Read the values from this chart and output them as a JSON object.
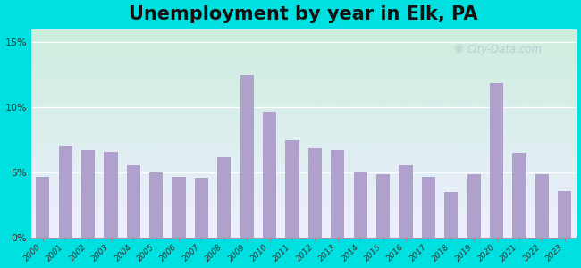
{
  "title": "Unemployment by year in Elk, PA",
  "years": [
    2000,
    2001,
    2002,
    2003,
    2004,
    2005,
    2006,
    2007,
    2008,
    2009,
    2010,
    2011,
    2012,
    2013,
    2014,
    2015,
    2016,
    2017,
    2018,
    2019,
    2020,
    2021,
    2022,
    2023
  ],
  "values": [
    4.7,
    7.1,
    6.7,
    6.6,
    5.6,
    5.0,
    4.7,
    4.6,
    6.2,
    12.5,
    9.7,
    7.5,
    6.9,
    6.7,
    5.1,
    4.9,
    5.6,
    4.7,
    3.5,
    4.9,
    11.9,
    6.5,
    4.9,
    3.6
  ],
  "bar_color": "#b0a0cc",
  "background_outer": "#00e0e0",
  "background_plot_top": "#cceedd",
  "background_plot_bottom": "#eeeeff",
  "grid_color": "#ffffff",
  "title_fontsize": 15,
  "yticks": [
    0,
    5,
    10,
    15
  ],
  "ylim": [
    0,
    16
  ],
  "watermark_text": "City-Data.com",
  "watermark_color": "#b8c8d0"
}
